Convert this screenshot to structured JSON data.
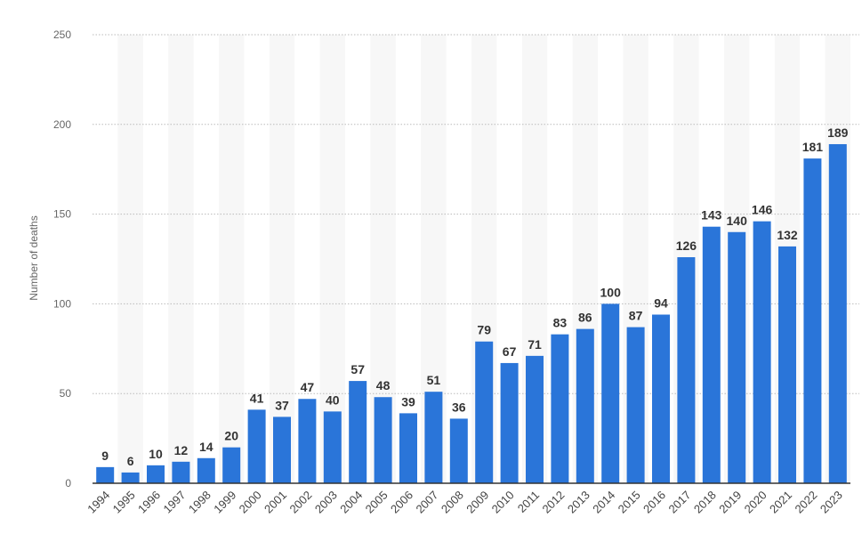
{
  "chart_data": {
    "type": "bar",
    "title": "",
    "xlabel": "",
    "ylabel": "Number of deaths",
    "ylim": [
      0,
      250
    ],
    "yticks": [
      0,
      50,
      100,
      150,
      200,
      250
    ],
    "grid": true,
    "bar_color": "#2a75d9",
    "categories": [
      "1994",
      "1995",
      "1996",
      "1997",
      "1998",
      "1999",
      "2000",
      "2001",
      "2002",
      "2003",
      "2004",
      "2005",
      "2006",
      "2007",
      "2008",
      "2009",
      "2010",
      "2011",
      "2012",
      "2013",
      "2014",
      "2015",
      "2016",
      "2017",
      "2018",
      "2019",
      "2020",
      "2021",
      "2022",
      "2023"
    ],
    "values": [
      9,
      6,
      10,
      12,
      14,
      20,
      41,
      37,
      47,
      40,
      57,
      48,
      39,
      51,
      36,
      79,
      67,
      71,
      83,
      86,
      100,
      87,
      94,
      126,
      143,
      140,
      146,
      132,
      181,
      189
    ]
  }
}
